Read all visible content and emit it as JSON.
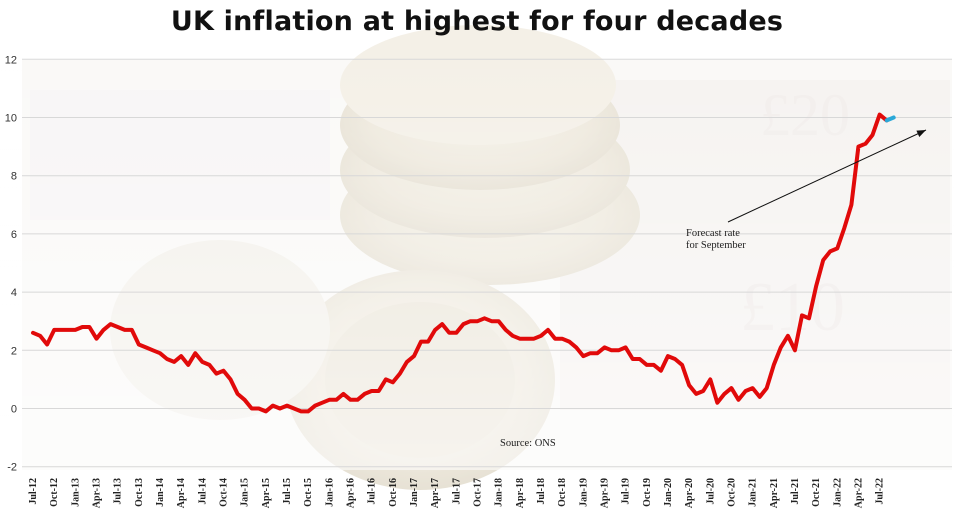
{
  "chart_data": {
    "type": "line",
    "title": "UK inflation at highest for four decades",
    "source": "Source: ONS",
    "annotation": {
      "lines": [
        "Forecast rate",
        "for September"
      ],
      "points_to": "forecast"
    },
    "ylim": [
      -2,
      12
    ],
    "yticks": [
      "-2",
      "0",
      "2",
      "4",
      "6",
      "8",
      "10",
      "12"
    ],
    "grid": "horizontal",
    "x_start": "2012-07",
    "xtick_labels": [
      "Jul-12",
      "Oct-12",
      "Jan-13",
      "Apr-13",
      "Jul-13",
      "Oct-13",
      "Jan-14",
      "Apr-14",
      "Jul-14",
      "Oct-14",
      "Jan-15",
      "Apr-15",
      "Jul-15",
      "Oct-15",
      "Jan-16",
      "Apr-16",
      "Jul-16",
      "Oct-16",
      "Jan-17",
      "Apr-17",
      "Jul-17",
      "Oct-17",
      "Jan-18",
      "Apr-18",
      "Jul-18",
      "Oct-18",
      "Jan-19",
      "Apr-19",
      "Jul-19",
      "Oct-19",
      "Jan-20",
      "Apr-20",
      "Jul-20",
      "Oct-20",
      "Jan-21",
      "Apr-21",
      "Jul-21",
      "Oct-21",
      "Jan-22",
      "Apr-22",
      "Jul-22"
    ],
    "series": [
      {
        "role": "actual",
        "color": "#e10a0a",
        "values": [
          2.6,
          2.5,
          2.2,
          2.7,
          2.7,
          2.7,
          2.7,
          2.8,
          2.8,
          2.4,
          2.7,
          2.9,
          2.8,
          2.7,
          2.7,
          2.2,
          2.1,
          2.0,
          1.9,
          1.7,
          1.6,
          1.8,
          1.5,
          1.9,
          1.6,
          1.5,
          1.2,
          1.3,
          1.0,
          0.5,
          0.3,
          0.0,
          0.0,
          -0.1,
          0.1,
          0.0,
          0.1,
          0.0,
          -0.1,
          -0.1,
          0.1,
          0.2,
          0.3,
          0.3,
          0.5,
          0.3,
          0.3,
          0.5,
          0.6,
          0.6,
          1.0,
          0.9,
          1.2,
          1.6,
          1.8,
          2.3,
          2.3,
          2.7,
          2.9,
          2.6,
          2.6,
          2.9,
          3.0,
          3.0,
          3.1,
          3.0,
          3.0,
          2.7,
          2.5,
          2.4,
          2.4,
          2.4,
          2.5,
          2.7,
          2.4,
          2.4,
          2.3,
          2.1,
          1.8,
          1.9,
          1.9,
          2.1,
          2.0,
          2.0,
          2.1,
          1.7,
          1.7,
          1.5,
          1.5,
          1.3,
          1.8,
          1.7,
          1.5,
          0.8,
          0.5,
          0.6,
          1.0,
          0.2,
          0.5,
          0.7,
          0.3,
          0.6,
          0.7,
          0.4,
          0.7,
          1.5,
          2.1,
          2.5,
          2.0,
          3.2,
          3.1,
          4.2,
          5.1,
          5.4,
          5.5,
          6.2,
          7.0,
          9.0,
          9.1,
          9.4,
          10.1,
          9.9
        ]
      },
      {
        "role": "forecast",
        "color": "#2aa8d8",
        "values": [
          9.9,
          10.0
        ]
      }
    ]
  }
}
